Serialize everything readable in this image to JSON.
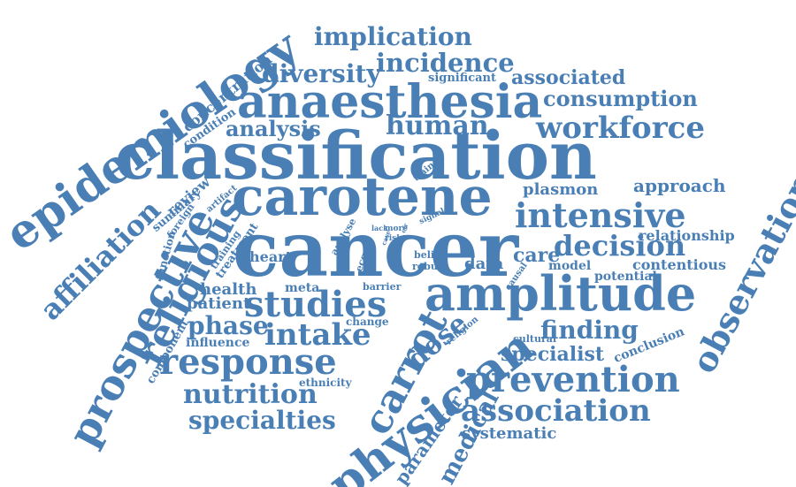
{
  "color": "#4a7fb5",
  "words": {
    "cancer": "cancer",
    "classification": "classification",
    "carotene": "carotene",
    "anaesthesia": "anaesthesia",
    "amplitude": "amplitude",
    "epidemiology": "epidemiology",
    "prospective": "prospective",
    "religious": "religious",
    "physician": "physician",
    "response": "response",
    "prevention": "prevention",
    "association": "association",
    "observational": "observational",
    "studies": "studies",
    "intake": "intake",
    "intensive": "intensive",
    "decision": "decision",
    "workforce": "workforce",
    "implication": "implication",
    "incidence": "incidence",
    "diversity": "diversity",
    "human": "human",
    "consumption": "consumption",
    "associated": "associated",
    "analysis": "analysis",
    "carrot": "carrot",
    "nutrition": "nutrition",
    "specialties": "specialties",
    "phase": "phase",
    "dose": "dose",
    "finding": "finding",
    "specialist": "specialist",
    "affiliation": "affiliation",
    "approach": "approach",
    "plasmon": "plasmon",
    "relationship": "relationship",
    "contentious": "contentious",
    "potential": "potential",
    "model": "model",
    "care": "care",
    "data": "data",
    "heart": "heart",
    "health": "health",
    "patient": "patient",
    "meta": "meta",
    "influence": "influence",
    "change": "change",
    "ethnicity": "ethnicity",
    "systematic": "systematic",
    "medical": "medical",
    "parameter": "parameter",
    "conclusion": "conclusion",
    "cultural": "cultural",
    "religion": "religion",
    "concentration": "concentration",
    "condition": "condition",
    "significant": "significant",
    "summary": "summary",
    "review": "review",
    "foreign": "foreign",
    "training": "training",
    "treatment": "treatment",
    "function": "function",
    "component": "component",
    "artifact": "artifact",
    "trainee": "trainee",
    "signal": "signal",
    "analyse": "analyse",
    "lack": "lack",
    "risk": "risk",
    "ecgs": "ecgs",
    "more": "more",
    "belief": "belief",
    "robust": "robust",
    "barrier": "barrier",
    "issue": "issue",
    "causal": "causal",
    "case": "case",
    "cfr": "cfr"
  }
}
